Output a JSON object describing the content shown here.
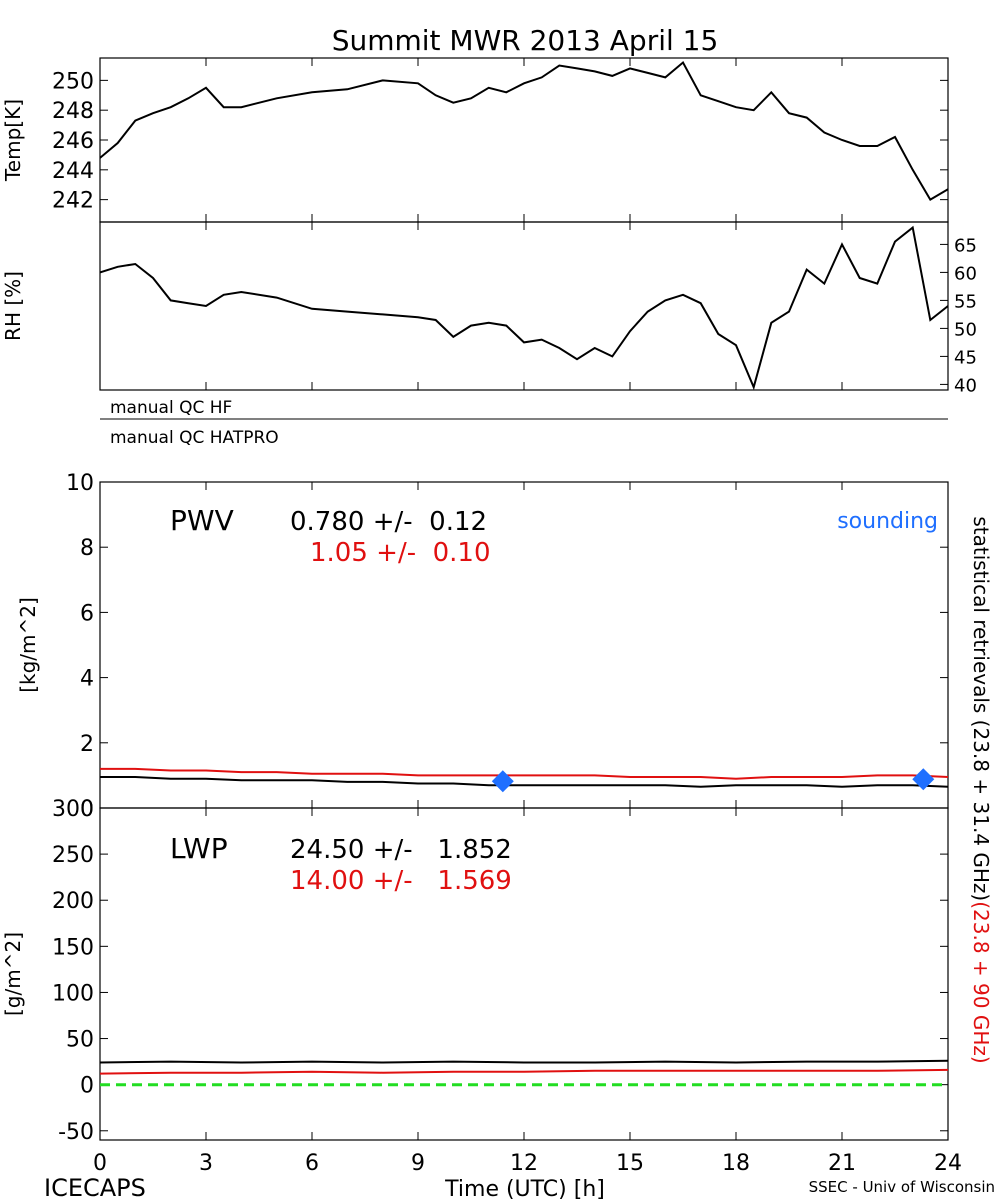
{
  "title": "Summit MWR 2013 April 15",
  "footer": {
    "left": "ICECAPS",
    "center": "Time (UTC) [h]",
    "right": "SSEC - Univ of Wisconsin"
  },
  "right_labels": {
    "black": "statistical retrievals (23.8 + 31.4 GHz)",
    "red": "(23.8 + 90 GHz)"
  },
  "colors": {
    "black": "#000000",
    "red": "#e01010",
    "blue": "#1f6fff",
    "green": "#22dd22"
  },
  "chart_data": [
    {
      "type": "line",
      "name": "temperature",
      "xlabel": "",
      "ylabel": "Temp[K]",
      "xlim": [
        0,
        24
      ],
      "ylim": [
        240.5,
        251.5
      ],
      "yticks": [
        242,
        244,
        246,
        248,
        250
      ],
      "series": [
        {
          "color": "#000000",
          "x": [
            0,
            0.5,
            1,
            1.5,
            2,
            2.5,
            3,
            3.5,
            4,
            5,
            6,
            7,
            8,
            9,
            9.5,
            10,
            10.5,
            11,
            11.5,
            12,
            12.5,
            13,
            13.5,
            14,
            14.5,
            15,
            15.5,
            16,
            16.5,
            17,
            17.5,
            18,
            18.5,
            19,
            19.5,
            20,
            20.5,
            21,
            21.5,
            22,
            22.5,
            23,
            23.5,
            24
          ],
          "values": [
            244.8,
            245.8,
            247.3,
            247.8,
            248.2,
            248.8,
            249.5,
            248.2,
            248.2,
            248.8,
            249.2,
            249.4,
            250.0,
            249.8,
            249.0,
            248.5,
            248.8,
            249.5,
            249.2,
            249.8,
            250.2,
            251.0,
            250.8,
            250.6,
            250.3,
            250.8,
            250.5,
            250.2,
            251.2,
            249.0,
            248.6,
            248.2,
            248.0,
            249.2,
            247.8,
            247.5,
            246.5,
            246.0,
            245.6,
            245.6,
            246.2,
            244.0,
            242.0,
            242.7
          ]
        }
      ]
    },
    {
      "type": "line",
      "name": "relative-humidity",
      "xlabel": "",
      "ylabel": "RH [%]",
      "xlim": [
        0,
        24
      ],
      "ylim": [
        39,
        69
      ],
      "yticks": [
        40,
        45,
        50,
        55,
        60,
        65
      ],
      "series": [
        {
          "color": "#000000",
          "x": [
            0,
            0.5,
            1,
            1.5,
            2,
            2.5,
            3,
            3.5,
            4,
            5,
            6,
            7,
            8,
            9,
            9.5,
            10,
            10.5,
            11,
            11.5,
            12,
            12.5,
            13,
            13.5,
            14,
            14.5,
            15,
            15.5,
            16,
            16.5,
            17,
            17.5,
            18,
            18.5,
            19,
            19.5,
            20,
            20.5,
            21,
            21.5,
            22,
            22.5,
            23,
            23.5,
            24
          ],
          "values": [
            60.0,
            61.0,
            61.5,
            59.0,
            55.0,
            54.5,
            54.0,
            56.0,
            56.5,
            55.5,
            53.5,
            53.0,
            52.5,
            52.0,
            51.5,
            48.5,
            50.5,
            51.0,
            50.5,
            47.5,
            48.0,
            46.5,
            44.5,
            46.5,
            45.0,
            49.5,
            53.0,
            55.0,
            56.0,
            54.5,
            49.0,
            47.0,
            39.5,
            51.0,
            53.0,
            60.5,
            58.0,
            65.0,
            59.0,
            58.0,
            65.5,
            68.0,
            51.5,
            54.0
          ]
        }
      ]
    },
    {
      "type": "line",
      "name": "pwv",
      "xlabel": "",
      "ylabel": "[kg/m^2]",
      "xlim": [
        0,
        24
      ],
      "ylim": [
        0,
        10
      ],
      "xticks": [
        0,
        3,
        6,
        9,
        12,
        15,
        18,
        21,
        24
      ],
      "yticks": [
        0,
        2,
        4,
        6,
        8,
        10
      ],
      "annotation": {
        "label": "PWV",
        "black_stat": "0.780 +/-  0.12",
        "red_stat": "1.05 +/-  0.10",
        "legend": "sounding"
      },
      "series": [
        {
          "color": "#000000",
          "x": [
            0,
            1,
            2,
            3,
            4,
            5,
            6,
            7,
            8,
            9,
            10,
            11,
            12,
            13,
            14,
            15,
            16,
            17,
            18,
            19,
            20,
            21,
            22,
            23,
            24
          ],
          "values": [
            0.95,
            0.95,
            0.9,
            0.9,
            0.85,
            0.85,
            0.85,
            0.8,
            0.8,
            0.75,
            0.75,
            0.7,
            0.7,
            0.7,
            0.7,
            0.7,
            0.7,
            0.65,
            0.7,
            0.7,
            0.7,
            0.65,
            0.7,
            0.7,
            0.65
          ]
        },
        {
          "color": "#e01010",
          "x": [
            0,
            1,
            2,
            3,
            4,
            5,
            6,
            7,
            8,
            9,
            10,
            11,
            12,
            13,
            14,
            15,
            16,
            17,
            18,
            19,
            20,
            21,
            22,
            23,
            24
          ],
          "values": [
            1.2,
            1.2,
            1.15,
            1.15,
            1.1,
            1.1,
            1.05,
            1.05,
            1.05,
            1.0,
            1.0,
            1.0,
            1.0,
            1.0,
            1.0,
            0.95,
            0.95,
            0.95,
            0.9,
            0.95,
            0.95,
            0.95,
            1.0,
            1.0,
            0.95
          ]
        }
      ],
      "markers": {
        "name": "sounding",
        "color": "#1f6fff",
        "x": [
          11.4,
          23.3
        ],
        "values": [
          0.82,
          0.88
        ]
      }
    },
    {
      "type": "line",
      "name": "lwp",
      "xlabel": "Time (UTC) [h]",
      "ylabel": "[g/m^2]",
      "xlim": [
        0,
        24
      ],
      "ylim": [
        -60,
        300
      ],
      "xticks": [
        0,
        3,
        6,
        9,
        12,
        15,
        18,
        21,
        24
      ],
      "yticks": [
        -50,
        0,
        50,
        100,
        150,
        200,
        250,
        300
      ],
      "annotation": {
        "label": "LWP",
        "black_stat": "24.50 +/-   1.852",
        "red_stat": "14.00 +/-   1.569"
      },
      "series": [
        {
          "color": "#000000",
          "x": [
            0,
            2,
            4,
            6,
            8,
            10,
            12,
            14,
            16,
            18,
            20,
            22,
            24
          ],
          "values": [
            24,
            25,
            24,
            25,
            24,
            25,
            24,
            24,
            25,
            24,
            25,
            25,
            26
          ]
        },
        {
          "color": "#e01010",
          "x": [
            0,
            2,
            4,
            6,
            8,
            10,
            12,
            14,
            16,
            18,
            20,
            22,
            24
          ],
          "values": [
            12,
            13,
            13,
            14,
            13,
            14,
            14,
            15,
            15,
            15,
            15,
            15,
            16
          ]
        },
        {
          "color": "#22dd22",
          "dashed": true,
          "x": [
            0,
            24
          ],
          "values": [
            0,
            0
          ]
        }
      ]
    }
  ],
  "qc_rows": [
    "manual QC HF",
    "manual QC HATPRO"
  ]
}
